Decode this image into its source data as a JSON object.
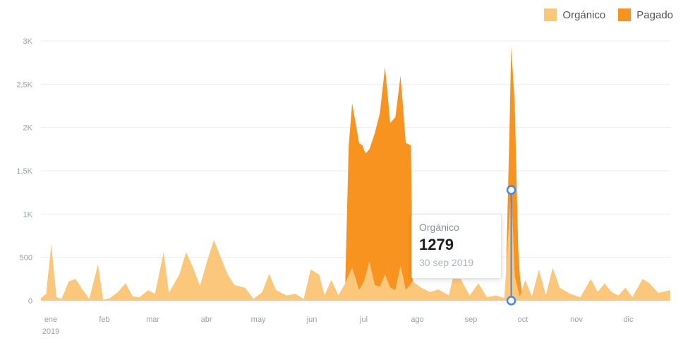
{
  "colors": {
    "organico": "#fbc77a",
    "pagado": "#f7931e",
    "grid": "#eeeeee",
    "axis_text": "#9aa0a6",
    "marker": "#4a86e8"
  },
  "chart_data": {
    "type": "area",
    "stacked": true,
    "grid": true,
    "legend_position": "top-right",
    "ylim": [
      0,
      3000
    ],
    "xlim": [
      0,
      364
    ],
    "yticks": [
      {
        "value": 0,
        "label": "0"
      },
      {
        "value": 500,
        "label": "500"
      },
      {
        "value": 1000,
        "label": "1K"
      },
      {
        "value": 1500,
        "label": "1,5K"
      },
      {
        "value": 2000,
        "label": "2K"
      },
      {
        "value": 2500,
        "label": "2,5K"
      },
      {
        "value": 3000,
        "label": "3K"
      }
    ],
    "xticks": [
      {
        "day": 0,
        "label": "ene",
        "sub": "2019"
      },
      {
        "day": 31,
        "label": "feb"
      },
      {
        "day": 59,
        "label": "mar"
      },
      {
        "day": 90,
        "label": "abr"
      },
      {
        "day": 120,
        "label": "may"
      },
      {
        "day": 151,
        "label": "jun"
      },
      {
        "day": 181,
        "label": "jul"
      },
      {
        "day": 212,
        "label": "ago"
      },
      {
        "day": 243,
        "label": "sep"
      },
      {
        "day": 273,
        "label": "oct"
      },
      {
        "day": 304,
        "label": "nov"
      },
      {
        "day": 334,
        "label": "dic"
      }
    ],
    "series": [
      {
        "name": "Orgánico",
        "points": [
          [
            0,
            30
          ],
          [
            3,
            80
          ],
          [
            6,
            650
          ],
          [
            9,
            40
          ],
          [
            12,
            20
          ],
          [
            16,
            220
          ],
          [
            20,
            250
          ],
          [
            24,
            130
          ],
          [
            28,
            20
          ],
          [
            33,
            420
          ],
          [
            36,
            10
          ],
          [
            40,
            30
          ],
          [
            44,
            90
          ],
          [
            49,
            200
          ],
          [
            53,
            50
          ],
          [
            57,
            40
          ],
          [
            62,
            120
          ],
          [
            66,
            80
          ],
          [
            71,
            560
          ],
          [
            74,
            90
          ],
          [
            80,
            300
          ],
          [
            84,
            560
          ],
          [
            88,
            380
          ],
          [
            92,
            170
          ],
          [
            96,
            450
          ],
          [
            100,
            700
          ],
          [
            104,
            500
          ],
          [
            108,
            300
          ],
          [
            112,
            180
          ],
          [
            118,
            150
          ],
          [
            123,
            20
          ],
          [
            128,
            100
          ],
          [
            132,
            310
          ],
          [
            136,
            120
          ],
          [
            142,
            60
          ],
          [
            147,
            80
          ],
          [
            152,
            20
          ],
          [
            156,
            360
          ],
          [
            161,
            300
          ],
          [
            164,
            60
          ],
          [
            168,
            240
          ],
          [
            172,
            60
          ],
          [
            176,
            200
          ],
          [
            180,
            380
          ],
          [
            184,
            120
          ],
          [
            187,
            230
          ],
          [
            190,
            450
          ],
          [
            193,
            180
          ],
          [
            196,
            160
          ],
          [
            199,
            300
          ],
          [
            202,
            150
          ],
          [
            205,
            120
          ],
          [
            208,
            400
          ],
          [
            211,
            120
          ],
          [
            215,
            220
          ],
          [
            220,
            150
          ],
          [
            225,
            100
          ],
          [
            230,
            130
          ],
          [
            236,
            60
          ],
          [
            240,
            420
          ],
          [
            244,
            200
          ],
          [
            248,
            60
          ],
          [
            253,
            200
          ],
          [
            258,
            40
          ],
          [
            263,
            60
          ],
          [
            268,
            30
          ],
          [
            272,
            1279
          ],
          [
            274,
            280
          ],
          [
            277,
            40
          ],
          [
            280,
            240
          ],
          [
            284,
            50
          ],
          [
            288,
            360
          ],
          [
            292,
            60
          ],
          [
            296,
            380
          ],
          [
            300,
            150
          ],
          [
            306,
            80
          ],
          [
            312,
            40
          ],
          [
            318,
            250
          ],
          [
            322,
            100
          ],
          [
            326,
            200
          ],
          [
            330,
            100
          ],
          [
            334,
            60
          ],
          [
            338,
            150
          ],
          [
            342,
            40
          ],
          [
            348,
            250
          ],
          [
            352,
            200
          ],
          [
            357,
            90
          ],
          [
            364,
            120
          ]
        ]
      },
      {
        "name": "Pagado",
        "points": [
          [
            0,
            0
          ],
          [
            176,
            0
          ],
          [
            178,
            1500
          ],
          [
            180,
            1900
          ],
          [
            182,
            1800
          ],
          [
            184,
            1700
          ],
          [
            186,
            1600
          ],
          [
            188,
            1400
          ],
          [
            190,
            1300
          ],
          [
            193,
            1750
          ],
          [
            196,
            2000
          ],
          [
            199,
            2400
          ],
          [
            202,
            1900
          ],
          [
            205,
            2000
          ],
          [
            208,
            2200
          ],
          [
            211,
            1700
          ],
          [
            214,
            1600
          ],
          [
            215,
            0
          ],
          [
            269,
            0
          ],
          [
            271,
            1000
          ],
          [
            272,
            1650
          ],
          [
            274,
            2000
          ],
          [
            276,
            500
          ],
          [
            278,
            0
          ],
          [
            364,
            0
          ]
        ]
      }
    ],
    "tooltip": {
      "series": "Orgánico",
      "value": "1279",
      "date": "30 sep 2019",
      "day": 272,
      "organico": 1279,
      "stack_top": 2929
    }
  }
}
